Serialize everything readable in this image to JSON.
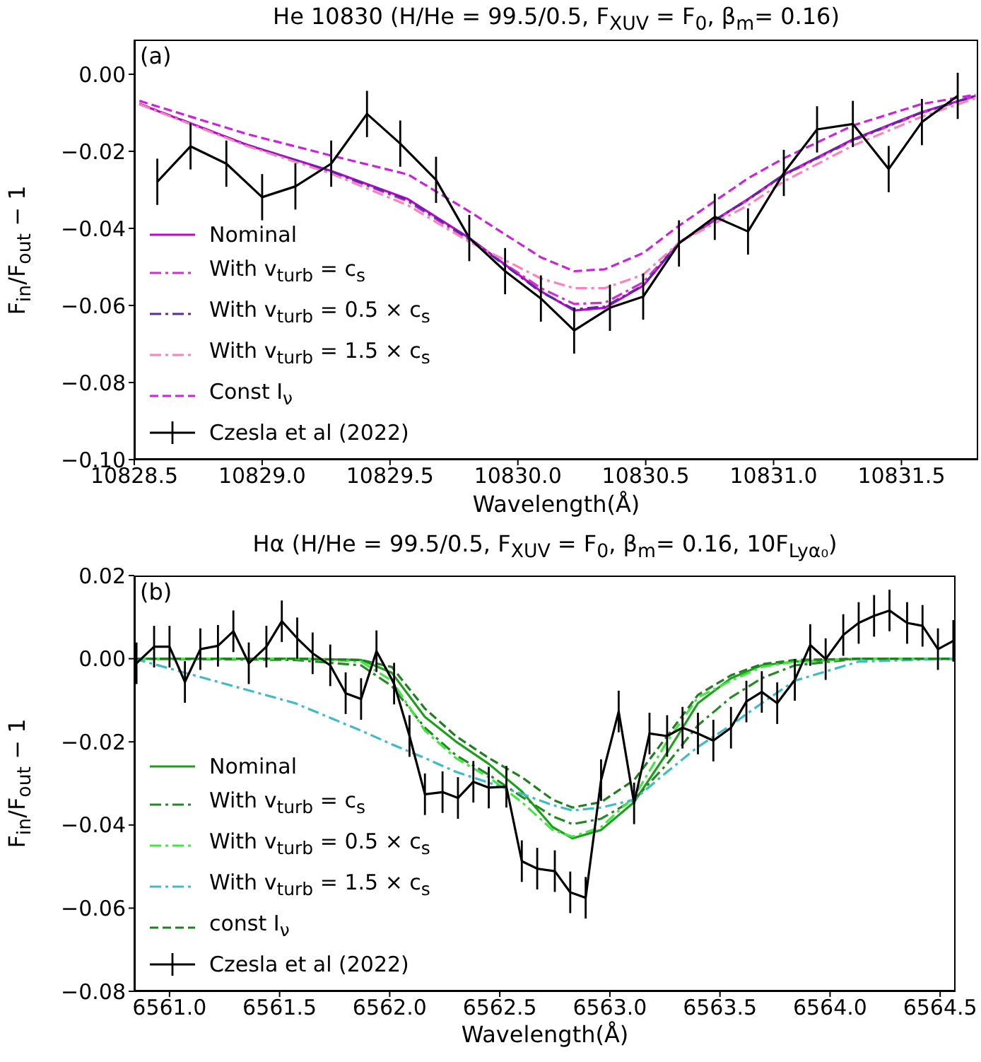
{
  "chart_data": [
    {
      "type": "line",
      "title": "He 10830 (H/He = 99.5/0.5, F$_{XUV}$ = F$_{0}$, β$_{m}$= 0.16)",
      "xlabel": "Wavelength(Å)",
      "ylabel": "F$_{in}$/F$_{out}$ − 1",
      "annotations": [
        "(a)"
      ],
      "xlim": [
        10828.5,
        10831.8
      ],
      "ylim": [
        -0.1,
        0.009
      ],
      "xticks": [
        {
          "value": 10828.5,
          "label": "10828.5"
        },
        {
          "value": 10829.0,
          "label": "10829.0"
        },
        {
          "value": 10829.5,
          "label": "10829.5"
        },
        {
          "value": 10830.0,
          "label": "10830.0"
        },
        {
          "value": 10830.5,
          "label": "10830.5"
        },
        {
          "value": 10831.0,
          "label": "10831.0"
        },
        {
          "value": 10831.5,
          "label": "10831.5"
        }
      ],
      "yticks": [
        {
          "value": 0,
          "label": "0.00"
        },
        {
          "value": -0.02,
          "label": "−0.02"
        },
        {
          "value": -0.04,
          "label": "−0.04"
        },
        {
          "value": -0.06,
          "label": "−0.06"
        },
        {
          "value": -0.08,
          "label": "−0.08"
        },
        {
          "value": -0.1,
          "label": "−0.10"
        }
      ],
      "legend": "bottom left",
      "series": [
        {
          "name": "Nominal",
          "color": "#c800d8",
          "line_style": "solid",
          "x": [
            10828.52,
            10828.94,
            10829.27,
            10829.57,
            10829.81,
            10830.09,
            10830.22,
            10830.34,
            10830.49,
            10830.63,
            10830.9,
            10831.04,
            10831.31,
            10831.58,
            10831.79
          ],
          "values": [
            -0.0077,
            -0.0183,
            -0.0251,
            -0.0324,
            -0.0425,
            -0.0563,
            -0.0613,
            -0.0606,
            -0.0549,
            -0.0437,
            -0.0324,
            -0.026,
            -0.0169,
            -0.0098,
            -0.0056
          ]
        },
        {
          "name": "With v$_{turb}$ = c$_{s}$",
          "color": "#d62ad6",
          "line_style": "dashdot",
          "x": [
            10828.52,
            10828.94,
            10829.27,
            10829.57,
            10829.81,
            10830.09,
            10830.22,
            10830.34,
            10830.49,
            10830.63,
            10830.9,
            10831.04,
            10831.31,
            10831.58,
            10831.79
          ],
          "values": [
            -0.0077,
            -0.0183,
            -0.0253,
            -0.033,
            -0.043,
            -0.0555,
            -0.0596,
            -0.0593,
            -0.054,
            -0.0437,
            -0.0326,
            -0.0262,
            -0.0172,
            -0.01,
            -0.0057
          ]
        },
        {
          "name": "With v$_{turb}$ = 0.5 × c$_{s}$",
          "color": "#5a2aa0",
          "line_style": "dashdot",
          "x": [
            10828.52,
            10828.94,
            10829.27,
            10829.57,
            10829.81,
            10830.09,
            10830.22,
            10830.34,
            10830.49,
            10830.63,
            10830.9,
            10831.04,
            10831.31,
            10831.58,
            10831.79
          ],
          "values": [
            -0.0077,
            -0.0184,
            -0.0252,
            -0.0326,
            -0.0427,
            -0.0565,
            -0.061,
            -0.0603,
            -0.0548,
            -0.0437,
            -0.0325,
            -0.0261,
            -0.017,
            -0.0099,
            -0.0056
          ]
        },
        {
          "name": "With v$_{turb}$ = 1.5 × c$_{s}$",
          "color": "#ff7fbf",
          "line_style": "dashdot",
          "x": [
            10828.52,
            10828.94,
            10829.27,
            10829.57,
            10829.81,
            10830.09,
            10830.22,
            10830.34,
            10830.49,
            10830.63,
            10830.9,
            10831.04,
            10831.31,
            10831.58,
            10831.79
          ],
          "values": [
            -0.0078,
            -0.0186,
            -0.0258,
            -0.034,
            -0.0435,
            -0.053,
            -0.0555,
            -0.0555,
            -0.052,
            -0.0437,
            -0.034,
            -0.0278,
            -0.0185,
            -0.011,
            -0.0062
          ]
        },
        {
          "name": "Const I$_{ν}$",
          "color": "#cc22dd",
          "line_style": "dashed",
          "x": [
            10828.52,
            10828.94,
            10829.27,
            10829.57,
            10829.81,
            10830.09,
            10830.22,
            10830.34,
            10830.49,
            10830.63,
            10830.9,
            10831.04,
            10831.31,
            10831.58,
            10831.79
          ],
          "values": [
            -0.0069,
            -0.0155,
            -0.0211,
            -0.026,
            -0.0356,
            -0.0475,
            -0.0511,
            -0.0506,
            -0.0464,
            -0.0393,
            -0.027,
            -0.0218,
            -0.0133,
            -0.0077,
            -0.0053
          ]
        },
        {
          "name": "Czesla et al (2022)",
          "color": "#000000",
          "line_style": "solid",
          "errors": [
            0.006,
            0.006,
            0.006,
            0.006,
            0.006,
            0.006,
            0.006,
            0.006,
            0.006,
            0.006,
            0.006,
            0.006,
            0.006,
            0.006,
            0.006,
            0.006,
            0.006,
            0.006,
            0.006,
            0.006,
            0.006,
            0.006,
            0.006,
            0.006
          ],
          "x": [
            10828.59,
            10828.72,
            10828.86,
            10829.0,
            10829.13,
            10829.27,
            10829.41,
            10829.54,
            10829.68,
            10829.81,
            10829.95,
            10830.09,
            10830.22,
            10830.36,
            10830.49,
            10830.63,
            10830.77,
            10830.9,
            10831.04,
            10831.17,
            10831.31,
            10831.45,
            10831.58,
            10831.72
          ],
          "values": [
            -0.0279,
            -0.0187,
            -0.0232,
            -0.0319,
            -0.0291,
            -0.0232,
            -0.0103,
            -0.018,
            -0.0274,
            -0.0425,
            -0.0511,
            -0.0582,
            -0.0665,
            -0.0606,
            -0.0577,
            -0.0439,
            -0.037,
            -0.0408,
            -0.0256,
            -0.0143,
            -0.0129,
            -0.0246,
            -0.0124,
            -0.0056
          ]
        }
      ]
    },
    {
      "type": "line",
      "title": "Hα (H/He = 99.5/0.5, F$_{XUV}$ = F$_{0}$, β$_{m}$= 0.16, 10F$_{Lyα₀}$)",
      "xlabel": "Wavelength(Å)",
      "ylabel": "F$_{in}$/F$_{out}$ − 1",
      "annotations": [
        "(b)"
      ],
      "xlim": [
        6560.84,
        6564.57
      ],
      "ylim": [
        -0.08,
        0.02
      ],
      "xticks": [
        {
          "value": 6561.0,
          "label": "6561.0"
        },
        {
          "value": 6561.5,
          "label": "6561.5"
        },
        {
          "value": 6562.0,
          "label": "6562.0"
        },
        {
          "value": 6562.5,
          "label": "6562.5"
        },
        {
          "value": 6563.0,
          "label": "6563.0"
        },
        {
          "value": 6563.5,
          "label": "6563.5"
        },
        {
          "value": 6564.0,
          "label": "6564.0"
        },
        {
          "value": 6564.5,
          "label": "6564.5"
        }
      ],
      "yticks": [
        {
          "value": 0.02,
          "label": "0.02"
        },
        {
          "value": 0,
          "label": "0.00"
        },
        {
          "value": -0.02,
          "label": "−0.02"
        },
        {
          "value": -0.04,
          "label": "−0.04"
        },
        {
          "value": -0.06,
          "label": "−0.06"
        },
        {
          "value": -0.08,
          "label": "−0.08"
        }
      ],
      "legend": "bottom left",
      "series": [
        {
          "name": "Nominal",
          "color": "#1ca01c",
          "line_style": "solid",
          "x": [
            6560.84,
            6561.57,
            6561.87,
            6562.01,
            6562.16,
            6562.3,
            6562.45,
            6562.6,
            6562.74,
            6562.83,
            6562.96,
            6563.11,
            6563.26,
            6563.4,
            6563.55,
            6563.69,
            6563.84,
            6564.13,
            6564.57
          ],
          "values": [
            0,
            0,
            -0.0003,
            -0.0034,
            -0.014,
            -0.0199,
            -0.0253,
            -0.0319,
            -0.0405,
            -0.0432,
            -0.0412,
            -0.0345,
            -0.0226,
            -0.0107,
            -0.0047,
            -0.0016,
            -0.0007,
            0,
            0
          ]
        },
        {
          "name": "With v$_{turb}$ = c$_{s}$",
          "color": "#228b22",
          "line_style": "dashdot",
          "x": [
            6560.84,
            6561.57,
            6561.87,
            6562.01,
            6562.16,
            6562.3,
            6562.45,
            6562.6,
            6562.74,
            6562.83,
            6562.96,
            6563.11,
            6563.26,
            6563.4,
            6563.55,
            6563.69,
            6563.84,
            6564.13,
            6564.57
          ],
          "values": [
            0,
            -0.0003,
            -0.0016,
            -0.0066,
            -0.0166,
            -0.0232,
            -0.0279,
            -0.0332,
            -0.0379,
            -0.0398,
            -0.0385,
            -0.0339,
            -0.0253,
            -0.016,
            -0.0093,
            -0.0047,
            -0.0016,
            0,
            0
          ]
        },
        {
          "name": "With v$_{turb}$ = 0.5 × c$_{s}$",
          "color": "#40e840",
          "line_style": "dashdot",
          "x": [
            6560.84,
            6561.57,
            6561.87,
            6562.01,
            6562.16,
            6562.3,
            6562.45,
            6562.6,
            6562.74,
            6562.83,
            6562.96,
            6563.11,
            6563.26,
            6563.4,
            6563.55,
            6563.69,
            6563.84,
            6564.13,
            6564.57
          ],
          "values": [
            0,
            0,
            -0.0007,
            -0.0053,
            -0.0173,
            -0.0239,
            -0.0285,
            -0.0345,
            -0.0412,
            -0.0428,
            -0.0405,
            -0.0332,
            -0.0199,
            -0.0093,
            -0.0053,
            -0.002,
            -0.0007,
            0,
            0
          ]
        },
        {
          "name": "With v$_{turb}$ = 1.5 × c$_{s}$",
          "color": "#3cbcc8",
          "line_style": "dashdot",
          "x": [
            6560.84,
            6561.57,
            6561.87,
            6562.01,
            6562.16,
            6562.3,
            6562.45,
            6562.6,
            6562.74,
            6562.83,
            6562.96,
            6563.11,
            6563.26,
            6563.4,
            6563.55,
            6563.69,
            6563.84,
            6564.13,
            6564.57
          ],
          "values": [
            0,
            -0.0107,
            -0.0173,
            -0.0206,
            -0.0239,
            -0.0272,
            -0.0298,
            -0.0325,
            -0.0352,
            -0.0365,
            -0.0358,
            -0.0339,
            -0.0272,
            -0.0212,
            -0.016,
            -0.0107,
            -0.0053,
            -0.0007,
            0
          ]
        },
        {
          "name": "const I$_{ν}$",
          "color": "#208020",
          "line_style": "dashed",
          "x": [
            6560.84,
            6561.57,
            6561.87,
            6562.01,
            6562.16,
            6562.3,
            6562.45,
            6562.6,
            6562.74,
            6562.83,
            6562.96,
            6563.11,
            6563.26,
            6563.4,
            6563.55,
            6563.69,
            6563.84,
            6564.13,
            6564.57
          ],
          "values": [
            0,
            0,
            -0.0003,
            -0.002,
            -0.012,
            -0.0186,
            -0.0239,
            -0.0285,
            -0.0339,
            -0.0358,
            -0.0345,
            -0.0292,
            -0.0186,
            -0.0087,
            -0.004,
            -0.0013,
            -0.0003,
            0,
            0
          ]
        },
        {
          "name": "Czesla et al (2022)",
          "color": "#000000",
          "line_style": "solid",
          "errors": [
            0.005,
            0.005,
            0.005,
            0.005,
            0.005,
            0.005,
            0.005,
            0.005,
            0.005,
            0.005,
            0.005,
            0.005,
            0.005,
            0.005,
            0.005,
            0.005,
            0.005,
            0.005,
            0.005,
            0.005,
            0.005,
            0.005,
            0.005,
            0.005,
            0.005,
            0.005,
            0.005,
            0.005,
            0.005,
            0.005,
            0.005,
            0.005,
            0.005,
            0.005,
            0.005,
            0.005,
            0.005,
            0.005,
            0.005,
            0.005,
            0.005,
            0.005,
            0.005,
            0.005,
            0.005,
            0.005,
            0.005,
            0.005,
            0.005,
            0.005,
            0.005,
            0.005
          ],
          "x": [
            6560.85,
            6560.93,
            6561.0,
            6561.07,
            6561.14,
            6561.22,
            6561.29,
            6561.36,
            6561.44,
            6561.51,
            6561.58,
            6561.65,
            6561.73,
            6561.8,
            6561.87,
            6561.94,
            6562.02,
            6562.09,
            6562.16,
            6562.24,
            6562.31,
            6562.38,
            6562.45,
            6562.53,
            6562.6,
            6562.67,
            6562.75,
            6562.82,
            6562.89,
            6562.96,
            6563.04,
            6563.11,
            6563.18,
            6563.26,
            6563.33,
            6563.4,
            6563.47,
            6563.55,
            6563.62,
            6563.69,
            6563.76,
            6563.84,
            6563.91,
            6563.98,
            6564.06,
            6564.13,
            6564.2,
            6564.27,
            6564.35,
            6564.42,
            6564.49,
            6564.56
          ],
          "values": [
            -0.0011,
            0.0029,
            0.0029,
            -0.0056,
            0.0023,
            0.0031,
            0.0066,
            -0.0011,
            0.0029,
            0.009,
            0.0049,
            0.0013,
            -0.0016,
            -0.0083,
            -0.0097,
            0.0018,
            -0.006,
            -0.0186,
            -0.0326,
            -0.0321,
            -0.0335,
            -0.0296,
            -0.031,
            -0.0308,
            -0.0487,
            -0.0505,
            -0.0511,
            -0.0562,
            -0.0575,
            -0.0292,
            -0.0127,
            -0.0348,
            -0.018,
            -0.0186,
            -0.0166,
            -0.018,
            -0.0197,
            -0.0166,
            -0.0103,
            -0.008,
            -0.0107,
            -0.0051,
            0.0033,
            -0.0001,
            0.0057,
            0.0086,
            0.0103,
            0.0116,
            0.0086,
            0.0079,
            0.0023,
            0.0043
          ]
        }
      ]
    }
  ]
}
